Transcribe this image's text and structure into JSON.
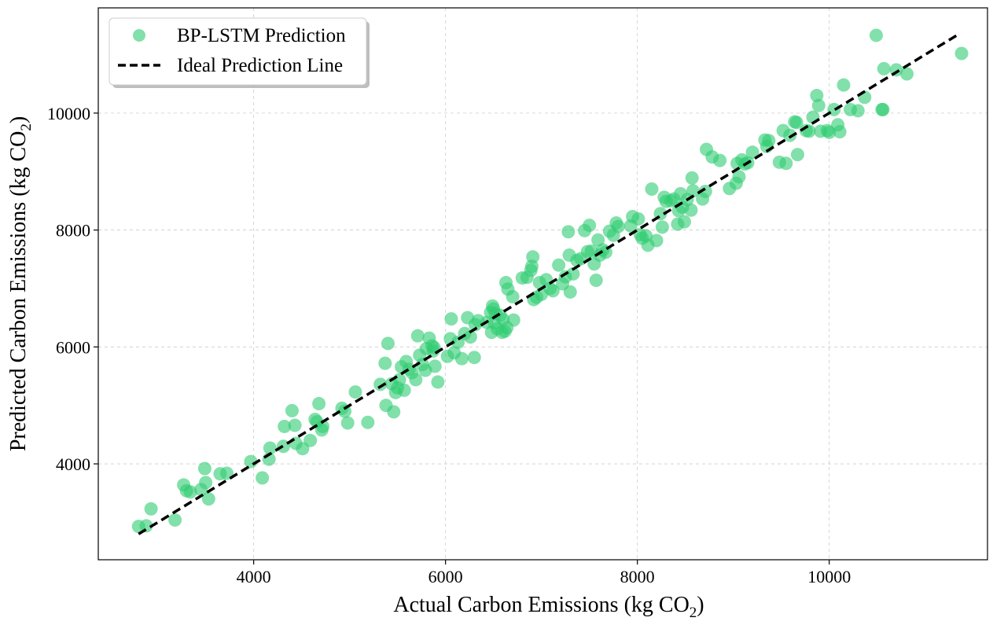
{
  "colors": {
    "scatter": "#2ecc71",
    "ideal_line": "#000000",
    "grid": "#cccccc",
    "background": "#ffffff"
  },
  "chart_data": {
    "type": "scatter",
    "title": "",
    "xlabel": "Actual Carbon Emissions (kg CO",
    "xlabel_sub": "2",
    "xlabel_tail": ")",
    "ylabel": "Predicted Carbon Emissions (kg CO",
    "ylabel_sub": "2",
    "ylabel_tail": ")",
    "xlim": [
      2380,
      11650
    ],
    "ylim": [
      2360,
      11800
    ],
    "xticks": [
      4000,
      6000,
      8000,
      10000
    ],
    "yticks": [
      4000,
      6000,
      8000,
      10000
    ],
    "grid": true,
    "legend_position": "top-left",
    "series": [
      {
        "name": "BP-LSTM Prediction",
        "kind": "scatter",
        "points": [
          [
            2800,
            2930
          ],
          [
            2880,
            2940
          ],
          [
            2930,
            3230
          ],
          [
            3180,
            3040
          ],
          [
            3270,
            3640
          ],
          [
            3300,
            3540
          ],
          [
            3340,
            3520
          ],
          [
            3450,
            3560
          ],
          [
            3490,
            3920
          ],
          [
            3500,
            3680
          ],
          [
            3530,
            3400
          ],
          [
            3650,
            3830
          ],
          [
            3720,
            3840
          ],
          [
            3970,
            4040
          ],
          [
            4090,
            3760
          ],
          [
            4160,
            4080
          ],
          [
            4170,
            4270
          ],
          [
            4310,
            4300
          ],
          [
            4320,
            4640
          ],
          [
            4400,
            4910
          ],
          [
            4430,
            4660
          ],
          [
            4440,
            4350
          ],
          [
            4510,
            4260
          ],
          [
            4590,
            4400
          ],
          [
            4640,
            4760
          ],
          [
            4660,
            4720
          ],
          [
            4680,
            5030
          ],
          [
            4710,
            4580
          ],
          [
            4720,
            4640
          ],
          [
            4920,
            4950
          ],
          [
            4950,
            4900
          ],
          [
            4980,
            4700
          ],
          [
            5060,
            5230
          ],
          [
            5190,
            4710
          ],
          [
            5320,
            5360
          ],
          [
            5370,
            5720
          ],
          [
            5380,
            5000
          ],
          [
            5400,
            6060
          ],
          [
            5440,
            5370
          ],
          [
            5460,
            4890
          ],
          [
            5480,
            5220
          ],
          [
            5500,
            5300
          ],
          [
            5520,
            5440
          ],
          [
            5540,
            5660
          ],
          [
            5570,
            5260
          ],
          [
            5590,
            5750
          ],
          [
            5620,
            5620
          ],
          [
            5650,
            5560
          ],
          [
            5690,
            5440
          ],
          [
            5710,
            6190
          ],
          [
            5730,
            5860
          ],
          [
            5760,
            5700
          ],
          [
            5790,
            5600
          ],
          [
            5800,
            5970
          ],
          [
            5830,
            6150
          ],
          [
            5860,
            6020
          ],
          [
            5870,
            5930
          ],
          [
            5880,
            5990
          ],
          [
            5890,
            5670
          ],
          [
            5920,
            5400
          ],
          [
            6020,
            5840
          ],
          [
            6050,
            6140
          ],
          [
            6060,
            6480
          ],
          [
            6090,
            5900
          ],
          [
            6130,
            6080
          ],
          [
            6170,
            5800
          ],
          [
            6200,
            6230
          ],
          [
            6230,
            6500
          ],
          [
            6260,
            6170
          ],
          [
            6300,
            5820
          ],
          [
            6310,
            6380
          ],
          [
            6340,
            6450
          ],
          [
            6430,
            6420
          ],
          [
            6470,
            6590
          ],
          [
            6480,
            6250
          ],
          [
            6490,
            6700
          ],
          [
            6500,
            6650
          ],
          [
            6510,
            6410
          ],
          [
            6520,
            6570
          ],
          [
            6540,
            6310
          ],
          [
            6570,
            6540
          ],
          [
            6590,
            6250
          ],
          [
            6600,
            6470
          ],
          [
            6620,
            6270
          ],
          [
            6630,
            7100
          ],
          [
            6640,
            6330
          ],
          [
            6650,
            6990
          ],
          [
            6700,
            6860
          ],
          [
            6710,
            6460
          ],
          [
            6800,
            7180
          ],
          [
            6850,
            7190
          ],
          [
            6890,
            7310
          ],
          [
            6900,
            7380
          ],
          [
            6910,
            7540
          ],
          [
            6920,
            6810
          ],
          [
            6950,
            6850
          ],
          [
            6980,
            7100
          ],
          [
            7000,
            6900
          ],
          [
            7050,
            7150
          ],
          [
            7090,
            7000
          ],
          [
            7120,
            6960
          ],
          [
            7180,
            7400
          ],
          [
            7220,
            7080
          ],
          [
            7250,
            7200
          ],
          [
            7280,
            7970
          ],
          [
            7290,
            7570
          ],
          [
            7300,
            6940
          ],
          [
            7330,
            7250
          ],
          [
            7370,
            7480
          ],
          [
            7410,
            7510
          ],
          [
            7450,
            7990
          ],
          [
            7480,
            7630
          ],
          [
            7500,
            8080
          ],
          [
            7520,
            7640
          ],
          [
            7550,
            7420
          ],
          [
            7570,
            7140
          ],
          [
            7590,
            7830
          ],
          [
            7610,
            7570
          ],
          [
            7640,
            7660
          ],
          [
            7670,
            7620
          ],
          [
            7710,
            7980
          ],
          [
            7750,
            7910
          ],
          [
            7780,
            8120
          ],
          [
            7800,
            8060
          ],
          [
            7930,
            8070
          ],
          [
            7950,
            8230
          ],
          [
            8010,
            8190
          ],
          [
            8030,
            7920
          ],
          [
            8050,
            7860
          ],
          [
            8090,
            7900
          ],
          [
            8110,
            7740
          ],
          [
            8150,
            8700
          ],
          [
            8200,
            7820
          ],
          [
            8240,
            8280
          ],
          [
            8260,
            8050
          ],
          [
            8280,
            8560
          ],
          [
            8300,
            8490
          ],
          [
            8350,
            8500
          ],
          [
            8380,
            8530
          ],
          [
            8420,
            8100
          ],
          [
            8430,
            8330
          ],
          [
            8450,
            8620
          ],
          [
            8470,
            8390
          ],
          [
            8490,
            8140
          ],
          [
            8520,
            8520
          ],
          [
            8560,
            8340
          ],
          [
            8570,
            8890
          ],
          [
            8580,
            8670
          ],
          [
            8680,
            8530
          ],
          [
            8710,
            8660
          ],
          [
            8720,
            9380
          ],
          [
            8780,
            9250
          ],
          [
            8860,
            9190
          ],
          [
            8960,
            8710
          ],
          [
            9030,
            8800
          ],
          [
            9040,
            9140
          ],
          [
            9060,
            8910
          ],
          [
            9090,
            9200
          ],
          [
            9120,
            9130
          ],
          [
            9150,
            9150
          ],
          [
            9200,
            9330
          ],
          [
            9330,
            9540
          ],
          [
            9350,
            9430
          ],
          [
            9370,
            9530
          ],
          [
            9480,
            9160
          ],
          [
            9520,
            9700
          ],
          [
            9550,
            9140
          ],
          [
            9590,
            9620
          ],
          [
            9640,
            9850
          ],
          [
            9660,
            9840
          ],
          [
            9670,
            9290
          ],
          [
            9760,
            9700
          ],
          [
            9790,
            9690
          ],
          [
            9830,
            9930
          ],
          [
            9870,
            10300
          ],
          [
            9890,
            10130
          ],
          [
            9910,
            9690
          ],
          [
            9980,
            9700
          ],
          [
            10000,
            9670
          ],
          [
            10050,
            10060
          ],
          [
            10090,
            9800
          ],
          [
            10110,
            9680
          ],
          [
            10150,
            10480
          ],
          [
            10220,
            10060
          ],
          [
            10300,
            10040
          ],
          [
            10370,
            10270
          ],
          [
            10490,
            11330
          ],
          [
            10550,
            10060
          ],
          [
            10560,
            10060
          ],
          [
            10570,
            10760
          ],
          [
            10700,
            10740
          ],
          [
            10810,
            10670
          ],
          [
            11380,
            11020
          ]
        ]
      },
      {
        "name": "Ideal Prediction Line",
        "kind": "line",
        "points": [
          [
            2800,
            2800
          ],
          [
            11350,
            11350
          ]
        ]
      }
    ]
  }
}
